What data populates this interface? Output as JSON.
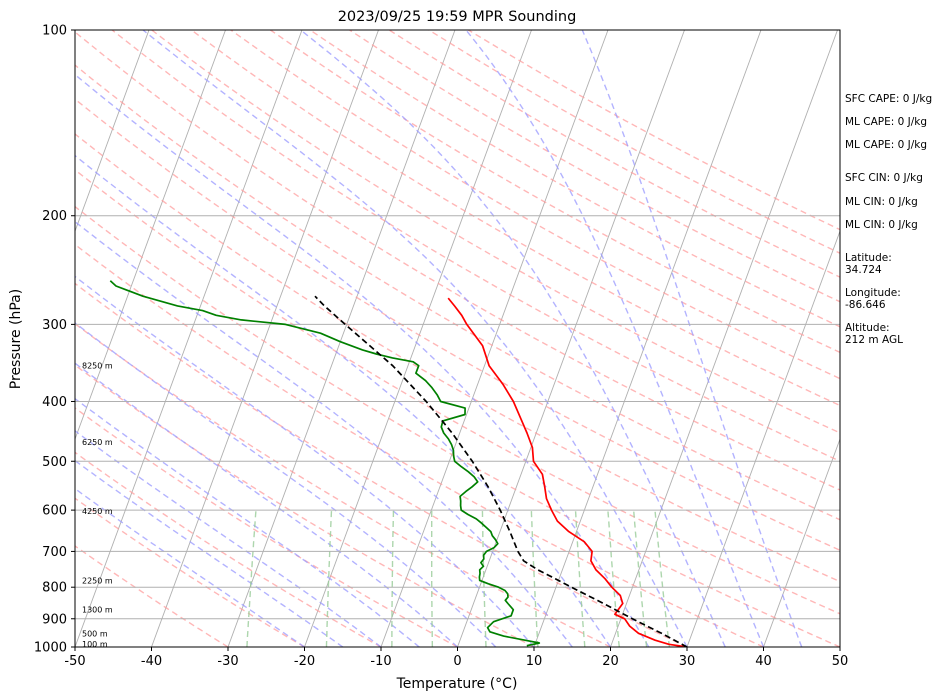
{
  "chart_data": {
    "type": "skew-t log-p",
    "title": "2023/09/25 19:59 MPR Sounding",
    "xlabel": "Temperature (°C)",
    "ylabel": "Pressure (hPa)",
    "xlim": [
      -50,
      50
    ],
    "ylim": [
      1000,
      100
    ],
    "x_ticks": [
      -50,
      -40,
      -30,
      -20,
      -10,
      0,
      10,
      20,
      30,
      40,
      50
    ],
    "y_ticks": [
      1000,
      900,
      800,
      700,
      600,
      500,
      400,
      300,
      200,
      100
    ],
    "grid": "horizontal isobars",
    "series": [
      {
        "role": "temperature",
        "color": "#ff0000",
        "p": [
          1000,
          990,
          975,
          950,
          925,
          900,
          885,
          850,
          825,
          800,
          775,
          750,
          725,
          700,
          675,
          650,
          625,
          600,
          575,
          550,
          525,
          500,
          475,
          450,
          425,
          400,
          375,
          350,
          325,
          300,
          290,
          280,
          272
        ],
        "t": [
          30.0,
          27.5,
          25.5,
          23.0,
          21.5,
          20.5,
          19.0,
          19.5,
          18.8,
          17.3,
          16.0,
          14.4,
          13.3,
          13.0,
          11.5,
          9.0,
          7.0,
          5.7,
          4.5,
          3.7,
          2.8,
          1.0,
          0.2,
          -1.2,
          -2.8,
          -4.5,
          -6.7,
          -9.4,
          -11.2,
          -14.3,
          -15.4,
          -16.8,
          -18.0
        ]
      },
      {
        "role": "dewpoint",
        "color": "#008000",
        "p": [
          995,
          985,
          975,
          960,
          945,
          930,
          910,
          890,
          870,
          860,
          850,
          840,
          830,
          820,
          810,
          800,
          790,
          780,
          770,
          760,
          750,
          740,
          730,
          720,
          710,
          700,
          690,
          680,
          670,
          660,
          650,
          640,
          630,
          620,
          610,
          600,
          590,
          580,
          570,
          560,
          550,
          540,
          530,
          520,
          510,
          500,
          490,
          480,
          470,
          460,
          450,
          440,
          430,
          420,
          410,
          400,
          390,
          380,
          370,
          360,
          350,
          345,
          340,
          335,
          330,
          320,
          310,
          300,
          295,
          290,
          285,
          280,
          275,
          270,
          265,
          260,
          255
        ],
        "t": [
          9,
          10.5,
          8.5,
          5.5,
          3.5,
          3.0,
          3.5,
          5.5,
          5.5,
          5.0,
          4.5,
          4.0,
          4.2,
          4.0,
          3.5,
          2.5,
          1.0,
          -0.3,
          -0.5,
          -0.6,
          -0.8,
          -0.5,
          -1.0,
          -0.8,
          -1.0,
          -0.8,
          0,
          0.3,
          -0.2,
          -0.8,
          -1.2,
          -2.0,
          -2.8,
          -3.7,
          -5.0,
          -6.1,
          -6.4,
          -6.6,
          -6.9,
          -6.4,
          -5.8,
          -5.3,
          -6.0,
          -7.0,
          -8.2,
          -9.3,
          -9.7,
          -10.0,
          -10.5,
          -11.2,
          -12.1,
          -12.7,
          -12.8,
          -10.2,
          -10.5,
          -14.0,
          -14.8,
          -15.8,
          -17.0,
          -18.6,
          -18.6,
          -19.5,
          -22.4,
          -24.7,
          -26.7,
          -30.0,
          -33.0,
          -38.0,
          -44.0,
          -47.5,
          -49.5,
          -53.0,
          -55.5,
          -58.0,
          -60.0,
          -62.0,
          -63.0
        ]
      },
      {
        "role": "parcel profile",
        "color": "#000000",
        "style": "dashed",
        "p": [
          1000,
          950,
          900,
          850,
          800,
          775,
          750,
          725,
          700,
          650,
          600,
          550,
          500,
          450,
          400,
          350,
          300,
          280,
          270
        ],
        "t": [
          30.0,
          26.0,
          21.5,
          17.0,
          12.0,
          9.5,
          6.8,
          4.5,
          3.3,
          1.3,
          -1.0,
          -3.7,
          -7.0,
          -11.0,
          -15.9,
          -22.0,
          -30.2,
          -33.8,
          -35.5
        ]
      }
    ],
    "height_labels": [
      {
        "text": "100 m",
        "p": 988
      },
      {
        "text": "500 m",
        "p": 950
      },
      {
        "text": "1300 m",
        "p": 870
      },
      {
        "text": "2250 m",
        "p": 780
      },
      {
        "text": "4250 m",
        "p": 602
      },
      {
        "text": "6250 m",
        "p": 465
      },
      {
        "text": "8250 m",
        "p": 350
      }
    ],
    "background_lines": {
      "isotherms_color": "#b0b0b0",
      "dry_adiabats_color": "#ff9999",
      "moist_adiabats_color": "#9999ff",
      "mixing_ratio_color": "#99cc99"
    }
  },
  "indices": [
    {
      "label": "SFC CAPE: 0 J/kg"
    },
    {
      "label": "ML CAPE: 0 J/kg"
    },
    {
      "label": "ML CAPE: 0 J/kg"
    },
    {
      "label": "SFC CIN: 0 J/kg"
    },
    {
      "label": "ML CIN: 0 J/kg"
    },
    {
      "label": "ML CIN: 0 J/kg"
    }
  ],
  "station": {
    "latitude_label": "Latitude:",
    "latitude_value": "34.724",
    "longitude_label": "Longitude:",
    "longitude_value": "-86.646",
    "altitude_label": "Altitude:",
    "altitude_value": "212 m AGL"
  }
}
